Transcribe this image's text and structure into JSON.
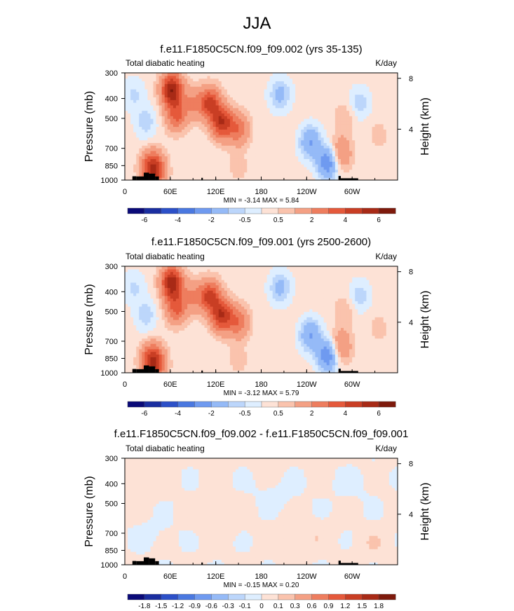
{
  "figure": {
    "title": "JJA"
  },
  "chart_data": [
    {
      "type": "heatmap",
      "title": "f.e11.F1850C5CN.f09_f09.002 (yrs 35-135)",
      "left_label": "Total diabatic heating",
      "units": "K/day",
      "ylabel": "Pressure (mb)",
      "ylabel_right": "Height (km)",
      "x_ticks": [
        "0",
        "60E",
        "120E",
        "180",
        "120W",
        "60W"
      ],
      "x_tick_lon": [
        0,
        60,
        120,
        180,
        240,
        300
      ],
      "xlim": [
        0,
        360
      ],
      "y_ticks": [
        "300",
        "400",
        "500",
        "700",
        "850",
        "1000"
      ],
      "y_tick_values": [
        300,
        400,
        500,
        700,
        850,
        1000
      ],
      "ylim": [
        1000,
        300
      ],
      "right_ticks": [
        "8",
        "4"
      ],
      "right_tick_km": [
        8,
        4
      ],
      "stats": "MIN =  -3.14  MAX =   5.84",
      "min": -3.14,
      "max": 5.84,
      "colorbar_labels": [
        "-6",
        "-4",
        "-2",
        "-0.5",
        "0.5",
        "2",
        "4",
        "6"
      ],
      "field": [
        {
          "lon": 12,
          "p": 380,
          "v": -0.8
        },
        {
          "lon": 28,
          "p": 520,
          "v": -1.0
        },
        {
          "lon": 35,
          "p": 860,
          "v": 3.0
        },
        {
          "lon": 40,
          "p": 900,
          "v": 2.8
        },
        {
          "lon": 62,
          "p": 360,
          "v": 5.6
        },
        {
          "lon": 68,
          "p": 480,
          "v": 3.0
        },
        {
          "lon": 90,
          "p": 420,
          "v": 1.5
        },
        {
          "lon": 112,
          "p": 420,
          "v": 4.0
        },
        {
          "lon": 128,
          "p": 520,
          "v": 4.6
        },
        {
          "lon": 150,
          "p": 560,
          "v": 2.5
        },
        {
          "lon": 150,
          "p": 860,
          "v": 0.5
        },
        {
          "lon": 205,
          "p": 380,
          "v": -1.5
        },
        {
          "lon": 245,
          "p": 650,
          "v": -2.2
        },
        {
          "lon": 268,
          "p": 820,
          "v": -3.1
        },
        {
          "lon": 285,
          "p": 740,
          "v": 2.0
        },
        {
          "lon": 290,
          "p": 500,
          "v": 0.8
        },
        {
          "lon": 310,
          "p": 420,
          "v": -1.0
        },
        {
          "lon": 335,
          "p": 600,
          "v": 0.5
        }
      ]
    },
    {
      "type": "heatmap",
      "title": "f.e11.F1850C5CN.f09_f09.001 (yrs 2500-2600)",
      "left_label": "Total diabatic heating",
      "units": "K/day",
      "ylabel": "Pressure (mb)",
      "ylabel_right": "Height (km)",
      "x_ticks": [
        "0",
        "60E",
        "120E",
        "180",
        "120W",
        "60W"
      ],
      "x_tick_lon": [
        0,
        60,
        120,
        180,
        240,
        300
      ],
      "xlim": [
        0,
        360
      ],
      "y_ticks": [
        "300",
        "400",
        "500",
        "700",
        "850",
        "1000"
      ],
      "y_tick_values": [
        300,
        400,
        500,
        700,
        850,
        1000
      ],
      "ylim": [
        1000,
        300
      ],
      "right_ticks": [
        "8",
        "4"
      ],
      "right_tick_km": [
        8,
        4
      ],
      "stats": "MIN =  -3.12  MAX =   5.79",
      "min": -3.12,
      "max": 5.79,
      "colorbar_labels": [
        "-6",
        "-4",
        "-2",
        "-0.5",
        "0.5",
        "2",
        "4",
        "6"
      ],
      "field": [
        {
          "lon": 12,
          "p": 380,
          "v": -0.8
        },
        {
          "lon": 28,
          "p": 520,
          "v": -1.0
        },
        {
          "lon": 35,
          "p": 860,
          "v": 3.0
        },
        {
          "lon": 40,
          "p": 900,
          "v": 2.8
        },
        {
          "lon": 62,
          "p": 360,
          "v": 5.5
        },
        {
          "lon": 68,
          "p": 480,
          "v": 3.0
        },
        {
          "lon": 90,
          "p": 420,
          "v": 1.5
        },
        {
          "lon": 112,
          "p": 420,
          "v": 4.0
        },
        {
          "lon": 128,
          "p": 520,
          "v": 4.6
        },
        {
          "lon": 150,
          "p": 560,
          "v": 2.5
        },
        {
          "lon": 150,
          "p": 860,
          "v": 0.5
        },
        {
          "lon": 205,
          "p": 380,
          "v": -1.5
        },
        {
          "lon": 245,
          "p": 650,
          "v": -2.2
        },
        {
          "lon": 268,
          "p": 820,
          "v": -3.1
        },
        {
          "lon": 285,
          "p": 740,
          "v": 2.0
        },
        {
          "lon": 290,
          "p": 500,
          "v": 0.8
        },
        {
          "lon": 310,
          "p": 420,
          "v": -1.0
        },
        {
          "lon": 335,
          "p": 600,
          "v": 0.5
        }
      ]
    },
    {
      "type": "heatmap",
      "title": "f.e11.F1850C5CN.f09_f09.002 - f.e11.F1850C5CN.f09_f09.001",
      "left_label": "Total diabatic heating",
      "units": "K/day",
      "ylabel": "Pressure (mb)",
      "ylabel_right": "Height (km)",
      "x_ticks": [
        "0",
        "60E",
        "120E",
        "180",
        "120W",
        "60W"
      ],
      "x_tick_lon": [
        0,
        60,
        120,
        180,
        240,
        300
      ],
      "xlim": [
        0,
        360
      ],
      "y_ticks": [
        "300",
        "400",
        "500",
        "700",
        "850",
        "1000"
      ],
      "y_tick_values": [
        300,
        400,
        500,
        700,
        850,
        1000
      ],
      "ylim": [
        1000,
        300
      ],
      "right_ticks": [
        "8",
        "4"
      ],
      "right_tick_km": [
        8,
        4
      ],
      "stats": "MIN =  -0.15  MAX =   0.20",
      "min": -0.15,
      "max": 0.2,
      "colorbar_labels": [
        "-1.8",
        "-1.5",
        "-1.2",
        "-0.9",
        "-0.6",
        "-0.3",
        "-0.1",
        "0",
        "0.1",
        "0.3",
        "0.6",
        "0.9",
        "1.2",
        "1.5",
        "1.8"
      ],
      "field": [
        {
          "lon": 20,
          "p": 400,
          "v": 0.06
        },
        {
          "lon": 40,
          "p": 700,
          "v": -0.05
        },
        {
          "lon": 120,
          "p": 600,
          "v": 0.07
        },
        {
          "lon": 200,
          "p": 450,
          "v": -0.06
        },
        {
          "lon": 230,
          "p": 700,
          "v": 0.08
        },
        {
          "lon": 300,
          "p": 400,
          "v": -0.05
        },
        {
          "lon": 330,
          "p": 800,
          "v": 0.05
        }
      ]
    }
  ],
  "colorbar": {
    "colors_main": [
      "#0a0a78",
      "#1a2ea0",
      "#2c50c8",
      "#4a78e0",
      "#6f9af0",
      "#95baf7",
      "#bcd6fb",
      "#deeeff",
      "#fde2d6",
      "#fac3ad",
      "#f4a084",
      "#ee7d5e",
      "#e5593b",
      "#c93e24",
      "#a82a16",
      "#7e1a0c"
    ],
    "colors_diff": [
      "#0a0a78",
      "#1a2ea0",
      "#2c50c8",
      "#4a78e0",
      "#6f9af0",
      "#95baf7",
      "#bcd6fb",
      "#deeeff",
      "#fde2d6",
      "#fac3ad",
      "#f4a084",
      "#ee7d5e",
      "#e5593b",
      "#c93e24",
      "#a82a16",
      "#7e1a0c"
    ],
    "land_color": "#000000"
  }
}
